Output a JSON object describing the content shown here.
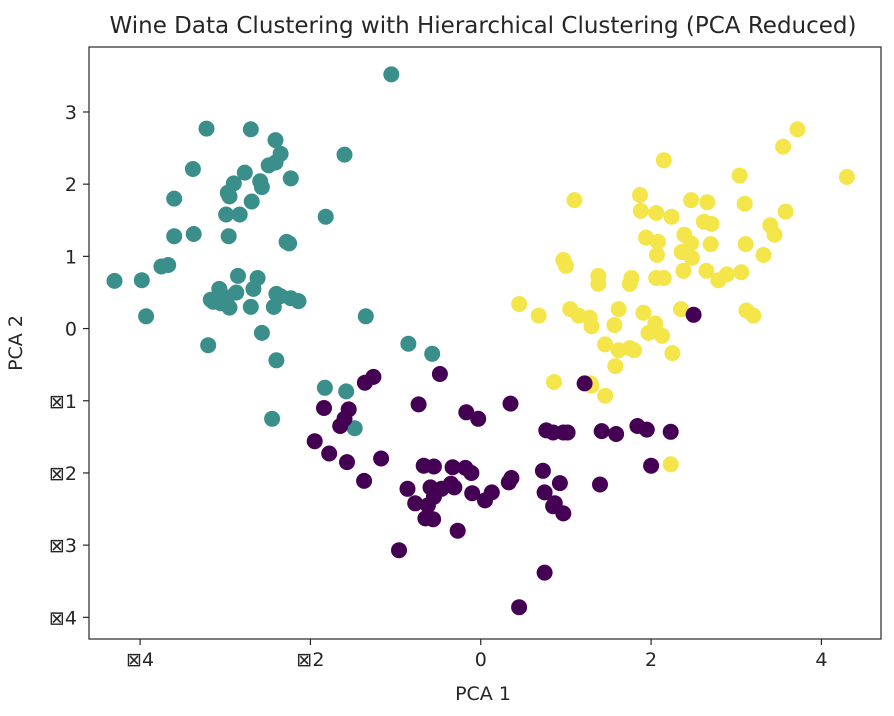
{
  "chart_data": {
    "type": "scatter",
    "title": "Wine Data Clustering with Hierarchical Clustering (PCA Reduced)",
    "xlabel": "PCA 1",
    "ylabel": "PCA 2",
    "xlim": [
      -4.6,
      4.7
    ],
    "ylim": [
      -4.3,
      3.9
    ],
    "grid": false,
    "xticks": [
      {
        "value": -4,
        "label": "⊠4"
      },
      {
        "value": -2,
        "label": "⊠2"
      },
      {
        "value": 0,
        "label": "0"
      },
      {
        "value": 2,
        "label": "2"
      },
      {
        "value": 4,
        "label": "4"
      }
    ],
    "yticks": [
      {
        "value": 3,
        "label": "3"
      },
      {
        "value": 2,
        "label": "2"
      },
      {
        "value": 1,
        "label": "1"
      },
      {
        "value": 0,
        "label": "0"
      },
      {
        "value": -1,
        "label": "⊠1"
      },
      {
        "value": -2,
        "label": "⊠2"
      },
      {
        "value": -3,
        "label": "⊠3"
      },
      {
        "value": -4,
        "label": "⊠4"
      }
    ],
    "series": [
      {
        "color": "#3b8f8b",
        "points": [
          [
            -1.05,
            3.52
          ],
          [
            -3.22,
            2.77
          ],
          [
            -2.7,
            2.76
          ],
          [
            -2.41,
            2.61
          ],
          [
            -2.35,
            2.42
          ],
          [
            -2.41,
            2.3
          ],
          [
            -1.6,
            2.41
          ],
          [
            -2.49,
            2.26
          ],
          [
            -3.38,
            2.21
          ],
          [
            -2.77,
            2.16
          ],
          [
            -2.9,
            2.01
          ],
          [
            -2.23,
            2.08
          ],
          [
            -2.59,
            2.04
          ],
          [
            -2.57,
            1.96
          ],
          [
            -2.97,
            1.88
          ],
          [
            -2.95,
            1.83
          ],
          [
            -3.6,
            1.8
          ],
          [
            -2.69,
            1.76
          ],
          [
            -2.99,
            1.58
          ],
          [
            -2.83,
            1.58
          ],
          [
            -1.82,
            1.55
          ],
          [
            -3.37,
            1.31
          ],
          [
            -3.6,
            1.28
          ],
          [
            -2.96,
            1.28
          ],
          [
            -2.28,
            1.2
          ],
          [
            -2.25,
            1.18
          ],
          [
            -3.67,
            0.88
          ],
          [
            -3.75,
            0.86
          ],
          [
            -2.85,
            0.73
          ],
          [
            -4.3,
            0.66
          ],
          [
            -3.98,
            0.67
          ],
          [
            -2.62,
            0.7
          ],
          [
            -3.07,
            0.55
          ],
          [
            -2.87,
            0.5
          ],
          [
            -2.98,
            0.43
          ],
          [
            -2.67,
            0.55
          ],
          [
            -3.17,
            0.4
          ],
          [
            -2.35,
            0.45
          ],
          [
            -2.4,
            0.48
          ],
          [
            -2.23,
            0.42
          ],
          [
            -2.14,
            0.38
          ],
          [
            -3.05,
            0.35
          ],
          [
            -2.7,
            0.3
          ],
          [
            -2.95,
            0.29
          ],
          [
            -3.14,
            0.37
          ],
          [
            -2.43,
            0.3
          ],
          [
            -3.93,
            0.17
          ],
          [
            -1.35,
            0.17
          ],
          [
            -2.57,
            -0.06
          ],
          [
            -3.2,
            -0.23
          ],
          [
            -0.85,
            -0.21
          ],
          [
            -0.57,
            -0.35
          ],
          [
            -2.4,
            -0.44
          ],
          [
            -1.83,
            -0.82
          ],
          [
            -1.58,
            -0.87
          ],
          [
            -2.45,
            -1.25
          ],
          [
            -1.48,
            -1.38
          ]
        ]
      },
      {
        "color": "#f4e54b",
        "points": [
          [
            3.72,
            2.76
          ],
          [
            3.55,
            2.52
          ],
          [
            2.15,
            2.33
          ],
          [
            4.3,
            2.1
          ],
          [
            3.04,
            2.12
          ],
          [
            1.1,
            1.78
          ],
          [
            1.87,
            1.85
          ],
          [
            2.47,
            1.78
          ],
          [
            2.66,
            1.75
          ],
          [
            3.1,
            1.73
          ],
          [
            3.58,
            1.62
          ],
          [
            1.88,
            1.63
          ],
          [
            2.06,
            1.6
          ],
          [
            2.24,
            1.55
          ],
          [
            2.62,
            1.48
          ],
          [
            2.71,
            1.45
          ],
          [
            3.4,
            1.43
          ],
          [
            1.94,
            1.26
          ],
          [
            2.08,
            1.2
          ],
          [
            2.39,
            1.3
          ],
          [
            2.47,
            1.18
          ],
          [
            2.7,
            1.17
          ],
          [
            3.11,
            1.17
          ],
          [
            3.45,
            1.3
          ],
          [
            2.36,
            1.06
          ],
          [
            2.07,
            1.02
          ],
          [
            2.48,
            0.98
          ],
          [
            3.32,
            1.02
          ],
          [
            0.97,
            0.95
          ],
          [
            1.0,
            0.87
          ],
          [
            1.38,
            0.73
          ],
          [
            1.38,
            0.62
          ],
          [
            1.77,
            0.7
          ],
          [
            2.06,
            0.7
          ],
          [
            2.15,
            0.7
          ],
          [
            2.38,
            0.8
          ],
          [
            2.65,
            0.8
          ],
          [
            2.79,
            0.67
          ],
          [
            2.89,
            0.75
          ],
          [
            3.06,
            0.78
          ],
          [
            1.75,
            0.62
          ],
          [
            0.45,
            0.34
          ],
          [
            0.68,
            0.18
          ],
          [
            1.05,
            0.27
          ],
          [
            1.15,
            0.18
          ],
          [
            1.28,
            0.15
          ],
          [
            1.3,
            0.03
          ],
          [
            1.62,
            0.27
          ],
          [
            1.91,
            0.22
          ],
          [
            2.05,
            0.07
          ],
          [
            2.35,
            0.27
          ],
          [
            3.12,
            0.25
          ],
          [
            3.2,
            0.18
          ],
          [
            1.57,
            0.05
          ],
          [
            1.97,
            -0.06
          ],
          [
            2.13,
            -0.1
          ],
          [
            1.46,
            -0.22
          ],
          [
            1.75,
            -0.27
          ],
          [
            1.62,
            -0.3
          ],
          [
            2.25,
            -0.34
          ],
          [
            1.8,
            -0.3
          ],
          [
            1.58,
            -0.52
          ],
          [
            1.29,
            -0.76
          ],
          [
            0.86,
            -0.74
          ],
          [
            1.3,
            -0.79
          ],
          [
            1.46,
            -0.93
          ],
          [
            2.23,
            -1.88
          ]
        ]
      },
      {
        "color": "#440154",
        "points": [
          [
            2.5,
            0.19
          ],
          [
            -1.26,
            -0.67
          ],
          [
            -1.36,
            -0.75
          ],
          [
            -0.48,
            -0.63
          ],
          [
            1.22,
            -0.76
          ],
          [
            -1.55,
            -1.12
          ],
          [
            -1.84,
            -1.1
          ],
          [
            -0.73,
            -1.05
          ],
          [
            -0.17,
            -1.16
          ],
          [
            -0.03,
            -1.25
          ],
          [
            0.35,
            -1.04
          ],
          [
            -1.6,
            -1.25
          ],
          [
            -1.65,
            -1.35
          ],
          [
            0.77,
            -1.41
          ],
          [
            0.85,
            -1.44
          ],
          [
            0.97,
            -1.44
          ],
          [
            1.02,
            -1.44
          ],
          [
            1.42,
            -1.42
          ],
          [
            1.59,
            -1.46
          ],
          [
            1.84,
            -1.35
          ],
          [
            1.95,
            -1.4
          ],
          [
            2.23,
            -1.43
          ],
          [
            -1.95,
            -1.56
          ],
          [
            -1.78,
            -1.73
          ],
          [
            -1.57,
            -1.85
          ],
          [
            -1.17,
            -1.8
          ],
          [
            -0.67,
            -1.9
          ],
          [
            -0.55,
            -1.91
          ],
          [
            -0.33,
            -1.92
          ],
          [
            -0.18,
            -1.93
          ],
          [
            -0.11,
            -2.0
          ],
          [
            0.36,
            -2.07
          ],
          [
            0.73,
            -1.97
          ],
          [
            2.0,
            -1.9
          ],
          [
            -1.37,
            -2.11
          ],
          [
            -0.86,
            -2.22
          ],
          [
            -0.59,
            -2.2
          ],
          [
            -0.46,
            -2.22
          ],
          [
            -0.31,
            -2.2
          ],
          [
            -0.55,
            -2.33
          ],
          [
            -0.77,
            -2.42
          ],
          [
            -0.62,
            -2.45
          ],
          [
            -0.1,
            -2.28
          ],
          [
            0.05,
            -2.38
          ],
          [
            0.33,
            -2.13
          ],
          [
            0.93,
            -2.14
          ],
          [
            1.4,
            -2.16
          ],
          [
            0.75,
            -2.27
          ],
          [
            0.87,
            -2.42
          ],
          [
            0.85,
            -2.46
          ],
          [
            0.97,
            -2.56
          ],
          [
            -0.65,
            -2.63
          ],
          [
            -0.56,
            -2.64
          ],
          [
            -0.27,
            -2.8
          ],
          [
            -0.96,
            -3.07
          ],
          [
            0.75,
            -3.38
          ],
          [
            0.45,
            -3.86
          ],
          [
            -0.35,
            -2.15
          ],
          [
            0.13,
            -2.27
          ]
        ]
      }
    ]
  }
}
